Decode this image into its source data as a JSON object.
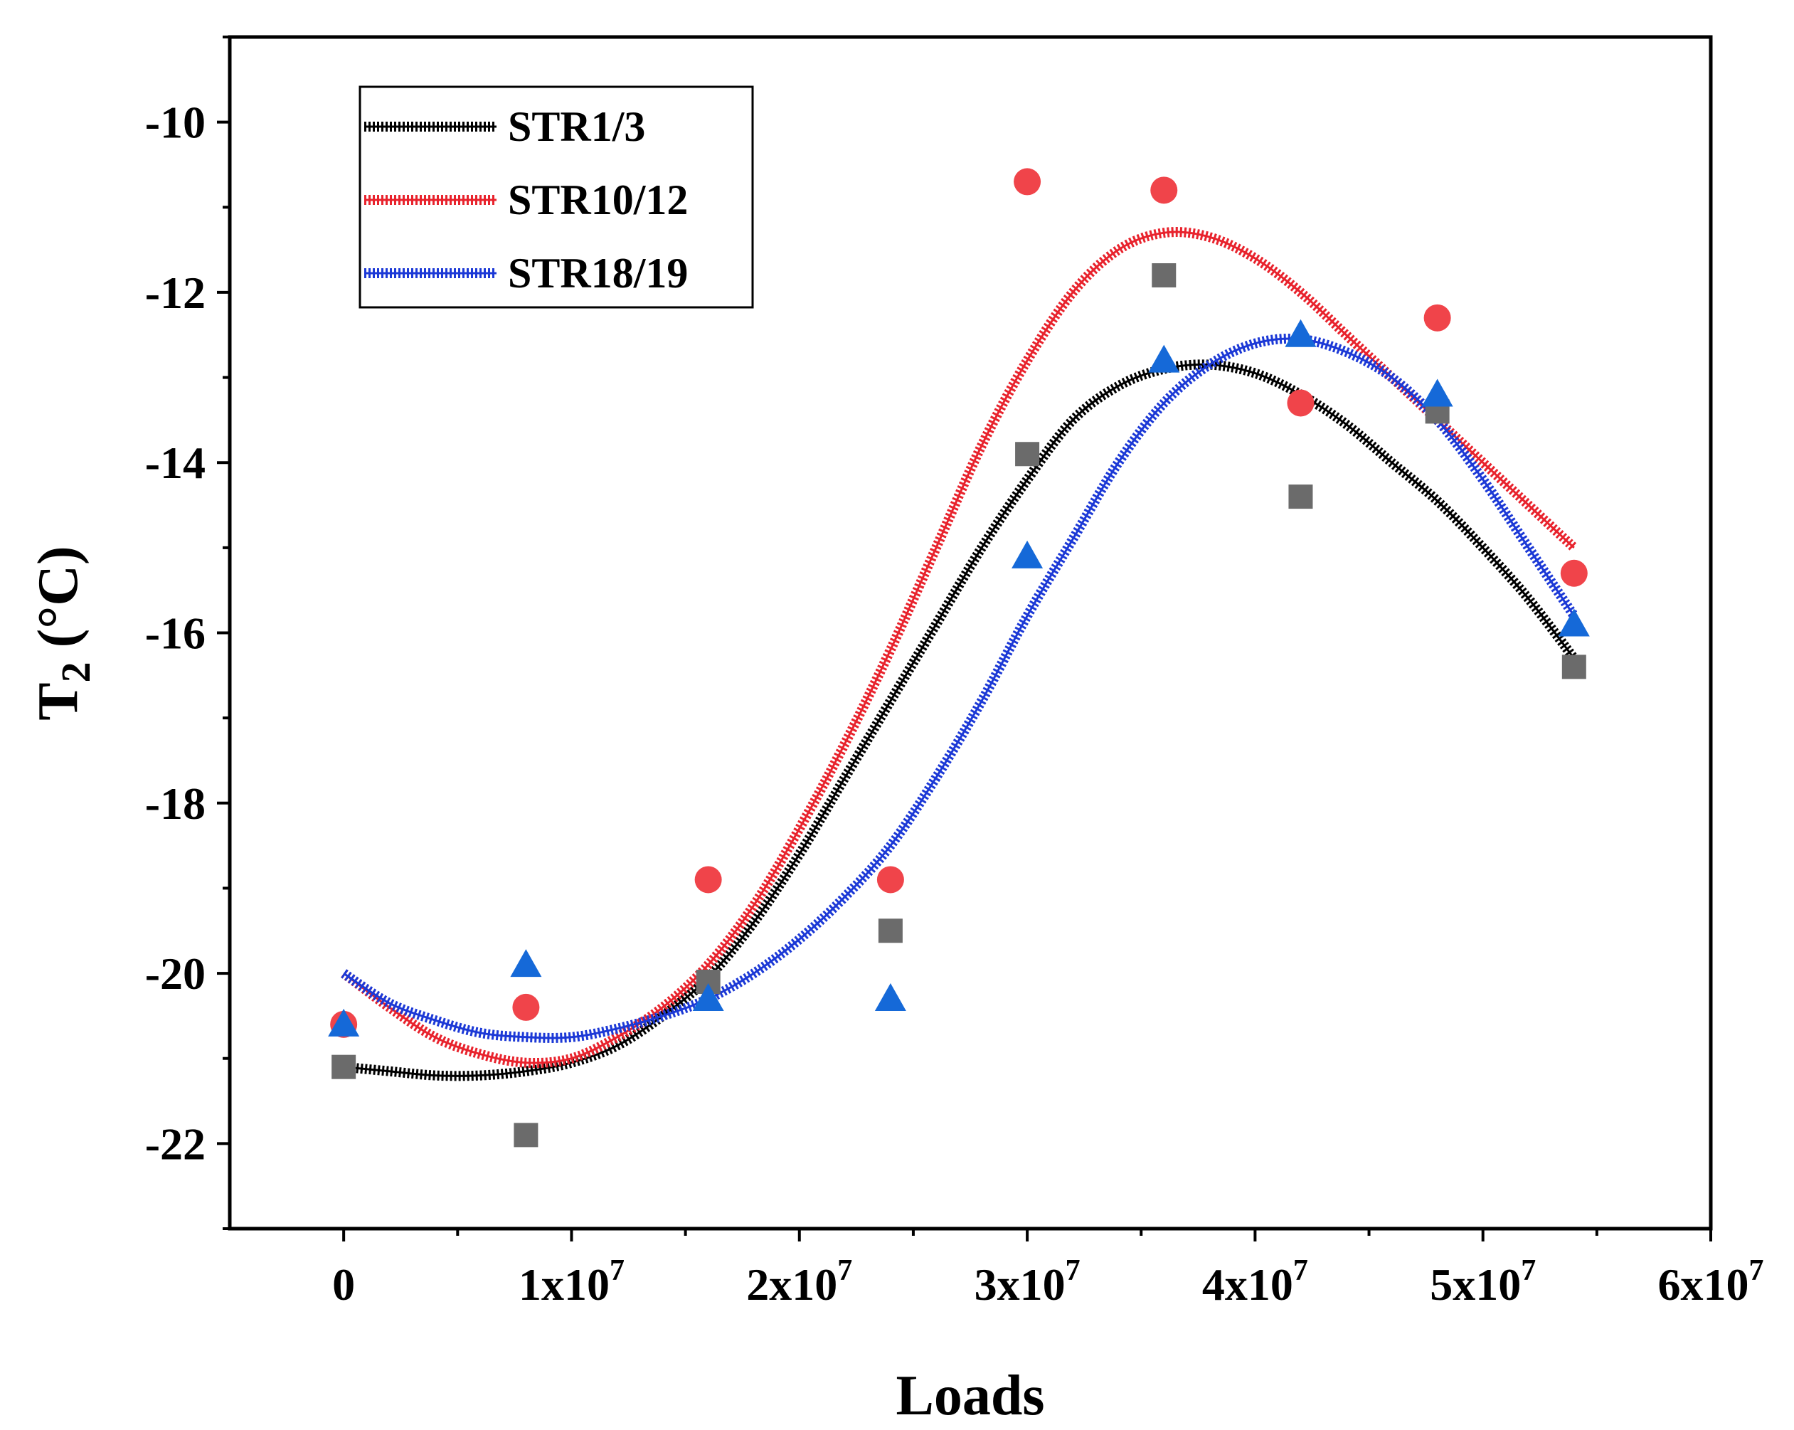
{
  "chart_data": {
    "type": "scatter",
    "xlabel": "Loads",
    "ylabel": "T",
    "ylabel_sub": "2",
    "ylabel_unit": " (°C)",
    "xlim": [
      -5000000,
      60000000
    ],
    "ylim": [
      -23,
      -9
    ],
    "x_ticks": [
      {
        "value": 0,
        "base": "0",
        "exp": ""
      },
      {
        "value": 10000000,
        "base": "1x10",
        "exp": "7"
      },
      {
        "value": 20000000,
        "base": "2x10",
        "exp": "7"
      },
      {
        "value": 30000000,
        "base": "3x10",
        "exp": "7"
      },
      {
        "value": 40000000,
        "base": "4x10",
        "exp": "7"
      },
      {
        "value": 50000000,
        "base": "5x10",
        "exp": "7"
      },
      {
        "value": 60000000,
        "base": "6x10",
        "exp": "7"
      }
    ],
    "y_ticks": [
      {
        "value": -10,
        "label": "-10"
      },
      {
        "value": -12,
        "label": "-12"
      },
      {
        "value": -14,
        "label": "-14"
      },
      {
        "value": -16,
        "label": "-16"
      },
      {
        "value": -18,
        "label": "-18"
      },
      {
        "value": -20,
        "label": "-20"
      },
      {
        "value": -22,
        "label": "-22"
      }
    ],
    "x": [
      0,
      8000000,
      16000000,
      24000000,
      30000000,
      36000000,
      42000000,
      48000000,
      54000000
    ],
    "series": [
      {
        "name": "STR1/3",
        "color": "#000000",
        "marker": "square",
        "marker_color": "#6b6b6b",
        "values": [
          -21.1,
          -21.9,
          -20.1,
          -19.5,
          -13.9,
          -11.8,
          -14.4,
          -13.4,
          -16.4
        ],
        "fit_x": [
          0,
          2000000,
          4000000,
          6000000,
          8000000,
          10000000,
          12000000,
          14000000,
          16000000,
          18000000,
          20000000,
          22000000,
          24000000,
          26000000,
          28000000,
          30000000,
          32000000,
          34000000,
          36000000,
          38000000,
          40000000,
          42000000,
          44000000,
          46000000,
          48000000,
          50000000,
          52000000,
          54000000
        ],
        "fit_y": [
          -21.1,
          -21.15,
          -21.2,
          -21.2,
          -21.15,
          -21.05,
          -20.85,
          -20.5,
          -20.05,
          -19.4,
          -18.6,
          -17.7,
          -16.8,
          -15.9,
          -15.0,
          -14.2,
          -13.5,
          -13.1,
          -12.9,
          -12.85,
          -12.95,
          -13.2,
          -13.55,
          -14.0,
          -14.45,
          -15.0,
          -15.6,
          -16.3
        ]
      },
      {
        "name": "STR10/12",
        "color": "#e8232d",
        "marker": "circle",
        "marker_color": "#f0444a",
        "values": [
          -20.6,
          -20.4,
          -18.9,
          -18.9,
          -10.7,
          -10.8,
          -13.3,
          -12.3,
          -15.3
        ],
        "fit_x": [
          0,
          2000000,
          4000000,
          6000000,
          8000000,
          10000000,
          12000000,
          14000000,
          16000000,
          18000000,
          20000000,
          22000000,
          24000000,
          26000000,
          28000000,
          30000000,
          32000000,
          34000000,
          36000000,
          38000000,
          40000000,
          42000000,
          44000000,
          46000000,
          48000000,
          50000000,
          52000000,
          54000000
        ],
        "fit_y": [
          -20.0,
          -20.4,
          -20.75,
          -20.95,
          -21.05,
          -21.0,
          -20.75,
          -20.4,
          -19.9,
          -19.2,
          -18.3,
          -17.3,
          -16.2,
          -15.0,
          -13.8,
          -12.8,
          -12.0,
          -11.5,
          -11.3,
          -11.35,
          -11.6,
          -12.0,
          -12.5,
          -13.0,
          -13.5,
          -14.0,
          -14.5,
          -15.0
        ]
      },
      {
        "name": "STR18/19",
        "color": "#1c39d6",
        "marker": "triangle",
        "marker_color": "#1569d8",
        "values": [
          -20.6,
          -19.9,
          -20.3,
          -20.3,
          -15.1,
          -12.8,
          -12.5,
          -13.2,
          -15.9
        ],
        "fit_x": [
          0,
          2000000,
          4000000,
          6000000,
          8000000,
          10000000,
          12000000,
          14000000,
          16000000,
          18000000,
          20000000,
          22000000,
          24000000,
          26000000,
          28000000,
          30000000,
          32000000,
          34000000,
          36000000,
          38000000,
          40000000,
          42000000,
          44000000,
          46000000,
          48000000,
          50000000,
          52000000,
          54000000
        ],
        "fit_y": [
          -20.0,
          -20.35,
          -20.55,
          -20.7,
          -20.75,
          -20.75,
          -20.65,
          -20.5,
          -20.3,
          -20.0,
          -19.6,
          -19.1,
          -18.5,
          -17.7,
          -16.8,
          -15.8,
          -14.9,
          -14.0,
          -13.3,
          -12.85,
          -12.6,
          -12.55,
          -12.7,
          -13.0,
          -13.5,
          -14.2,
          -15.0,
          -15.8
        ]
      }
    ]
  }
}
